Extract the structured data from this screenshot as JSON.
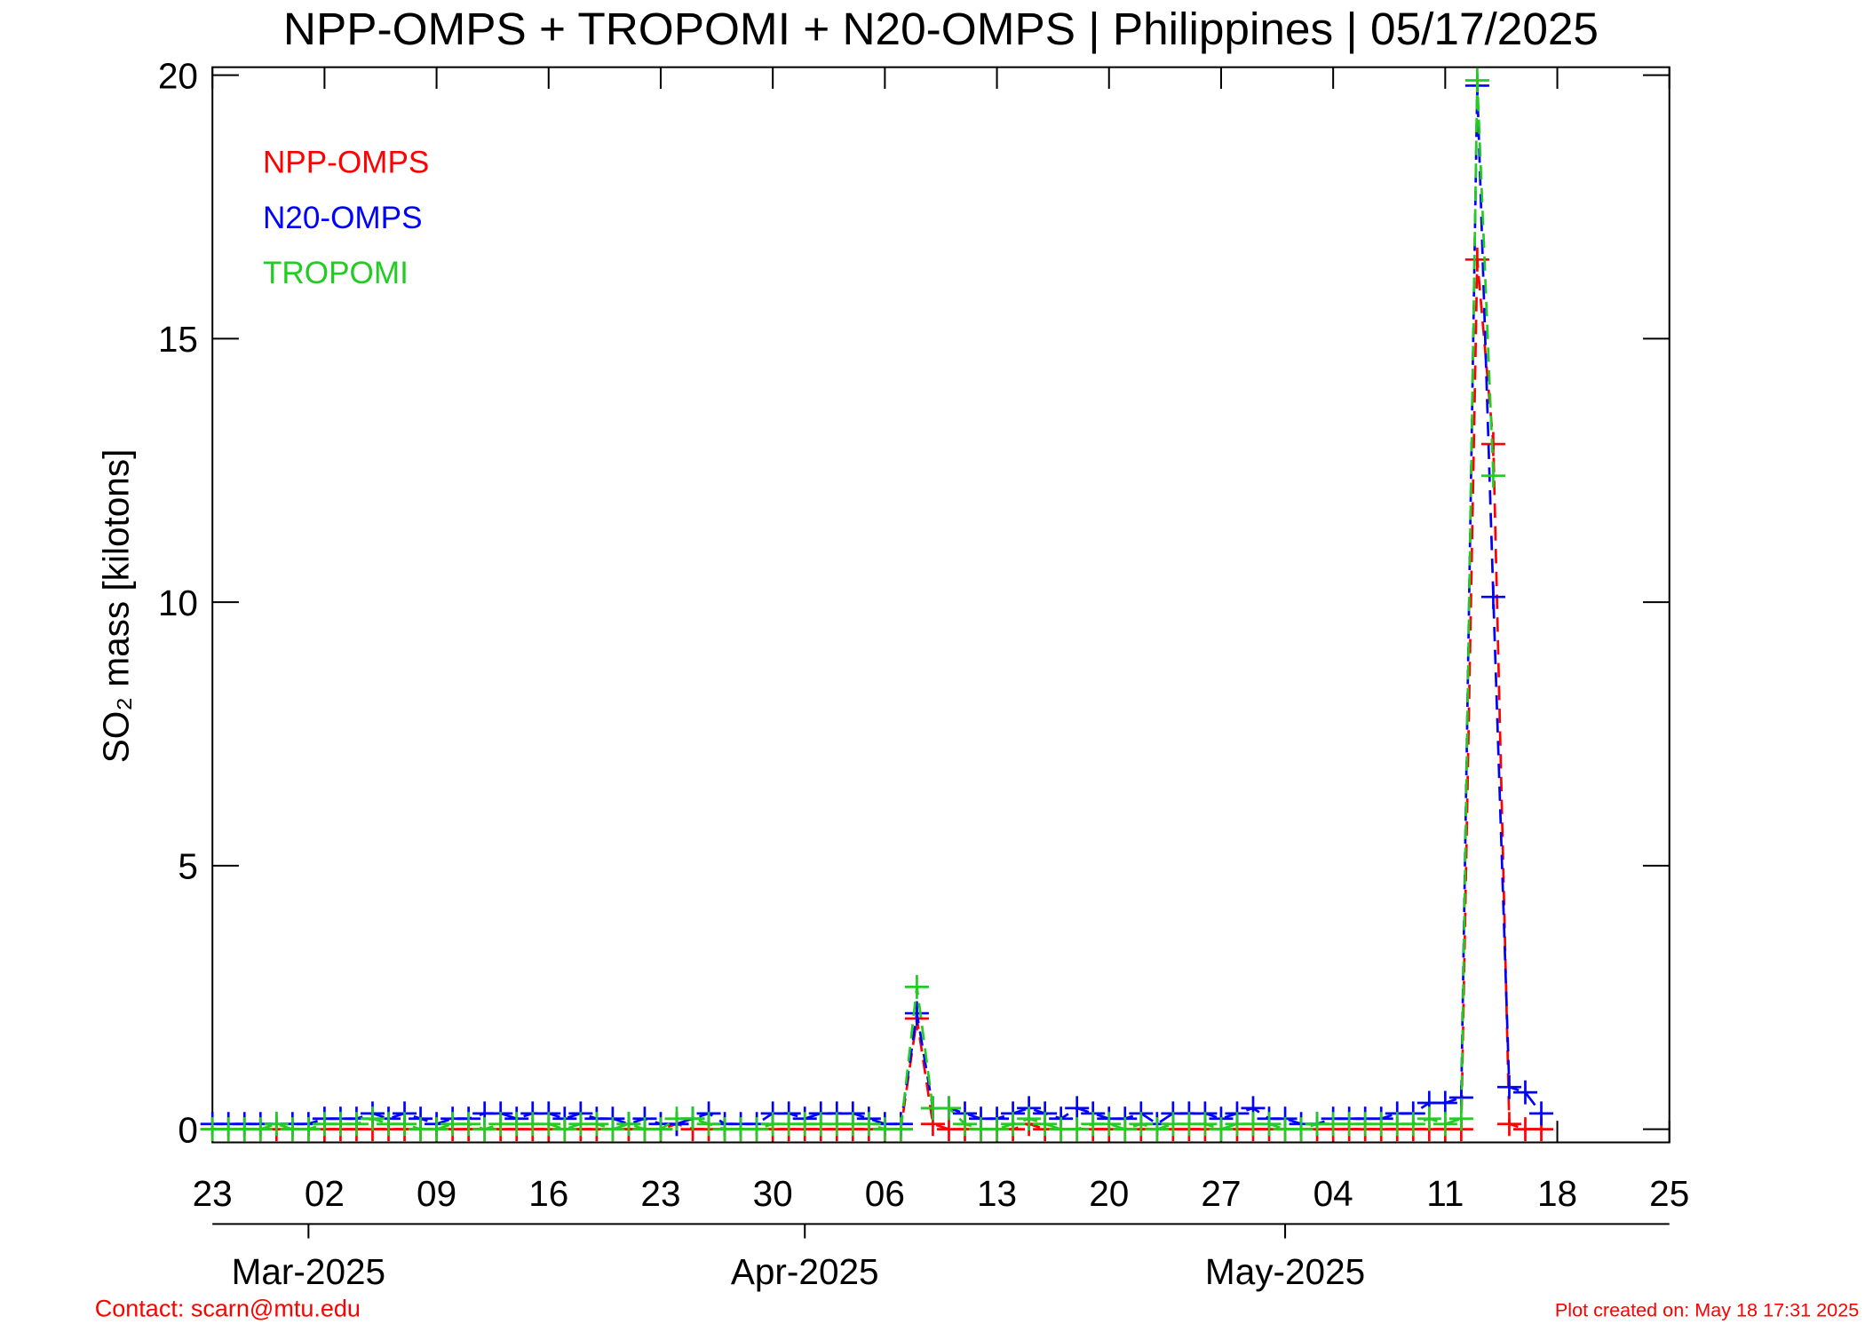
{
  "chart_data": {
    "type": "line",
    "title": "NPP-OMPS + TROPOMI + N20-OMPS | Philippines | 05/17/2025",
    "y_label": "SO₂ mass [kilotons]",
    "contact": "Contact: scarn@mtu.edu",
    "created": "Plot created on: May 18 17:31 2025",
    "x": [
      "2025-02-23",
      "2025-02-24",
      "2025-02-25",
      "2025-02-26",
      "2025-02-27",
      "2025-02-28",
      "2025-03-01",
      "2025-03-02",
      "2025-03-03",
      "2025-03-04",
      "2025-03-05",
      "2025-03-06",
      "2025-03-07",
      "2025-03-08",
      "2025-03-09",
      "2025-03-10",
      "2025-03-11",
      "2025-03-12",
      "2025-03-13",
      "2025-03-14",
      "2025-03-15",
      "2025-03-16",
      "2025-03-17",
      "2025-03-18",
      "2025-03-19",
      "2025-03-20",
      "2025-03-21",
      "2025-03-22",
      "2025-03-23",
      "2025-03-24",
      "2025-03-25",
      "2025-03-26",
      "2025-03-27",
      "2025-03-28",
      "2025-03-29",
      "2025-03-30",
      "2025-03-31",
      "2025-04-01",
      "2025-04-02",
      "2025-04-03",
      "2025-04-04",
      "2025-04-05",
      "2025-04-06",
      "2025-04-07",
      "2025-04-08",
      "2025-04-09",
      "2025-04-10",
      "2025-04-11",
      "2025-04-12",
      "2025-04-13",
      "2025-04-14",
      "2025-04-15",
      "2025-04-16",
      "2025-04-17",
      "2025-04-18",
      "2025-04-19",
      "2025-04-20",
      "2025-04-21",
      "2025-04-22",
      "2025-04-23",
      "2025-04-24",
      "2025-04-25",
      "2025-04-26",
      "2025-04-27",
      "2025-04-28",
      "2025-04-29",
      "2025-04-30",
      "2025-05-01",
      "2025-05-02",
      "2025-05-03",
      "2025-05-04",
      "2025-05-05",
      "2025-05-06",
      "2025-05-07",
      "2025-05-08",
      "2025-05-09",
      "2025-05-10",
      "2025-05-11",
      "2025-05-12",
      "2025-05-13",
      "2025-05-14",
      "2025-05-15",
      "2025-05-16",
      "2025-05-17"
    ],
    "series": [
      {
        "name": "NPP-OMPS",
        "color": "#ff0000",
        "values": [
          0,
          0,
          0,
          0,
          0,
          0,
          0,
          0,
          0,
          0,
          0,
          0,
          0,
          0,
          0,
          0,
          0,
          0,
          0,
          0,
          0,
          0,
          0,
          0,
          0,
          0,
          0,
          0,
          0,
          0.1,
          0,
          0,
          0,
          0,
          0,
          0,
          0,
          0,
          0,
          0,
          0,
          0,
          0,
          0,
          2.1,
          0.1,
          0,
          0,
          0,
          0,
          0,
          0.1,
          0,
          0,
          0,
          0,
          0,
          0,
          0,
          0,
          0,
          0,
          0,
          0,
          0,
          0,
          0,
          0,
          0,
          0,
          0,
          0,
          0,
          0,
          0,
          0,
          0,
          0,
          0,
          16.5,
          13.0,
          0.1,
          0,
          0
        ]
      },
      {
        "name": "N20-OMPS",
        "color": "#0000ff",
        "values": [
          0.1,
          0.1,
          0.1,
          0.1,
          0.1,
          0.1,
          0.1,
          0.2,
          0.2,
          0.2,
          0.3,
          0.2,
          0.3,
          0.2,
          0.1,
          0.2,
          0.2,
          0.3,
          0.3,
          0.2,
          0.3,
          0.3,
          0.2,
          0.3,
          0.2,
          0.2,
          0.1,
          0.2,
          0.1,
          0.1,
          0.2,
          0.3,
          0.1,
          0.1,
          0.1,
          0.3,
          0.3,
          0.2,
          0.3,
          0.3,
          0.3,
          0.2,
          0.1,
          0.1,
          2.2,
          0.4,
          0.4,
          0.3,
          0.2,
          0.2,
          0.3,
          0.4,
          0.3,
          0.2,
          0.4,
          0.3,
          0.2,
          0.2,
          0.3,
          0.1,
          0.3,
          0.3,
          0.3,
          0.2,
          0.3,
          0.4,
          0.2,
          0.2,
          0.1,
          0.1,
          0.2,
          0.2,
          0.2,
          0.2,
          0.3,
          0.3,
          0.5,
          0.5,
          0.6,
          19.8,
          10.1,
          0.8,
          0.7,
          0.3
        ]
      },
      {
        "name": "TROPOMI",
        "color": "#22cc22",
        "values": [
          0.0,
          0.0,
          0.0,
          0.0,
          0.1,
          0.0,
          0.0,
          0.1,
          0.1,
          0.1,
          0.2,
          0.1,
          0.1,
          0.0,
          0.0,
          0.1,
          0.1,
          0.0,
          0.1,
          0.1,
          0.1,
          0.1,
          0.0,
          0.1,
          0.1,
          0.0,
          0.1,
          0.0,
          0.0,
          0.2,
          0.2,
          0.1,
          0.0,
          0.0,
          0.0,
          0.1,
          0.1,
          0.1,
          0.1,
          0.1,
          0.1,
          0.1,
          0.0,
          0.0,
          2.7,
          0.4,
          0.4,
          0.1,
          0.0,
          0.0,
          0.1,
          0.2,
          0.1,
          0.0,
          0.0,
          0.1,
          0.1,
          0.0,
          0.1,
          0.0,
          0.1,
          0.1,
          0.1,
          0.0,
          0.1,
          0.1,
          0.1,
          0.0,
          0.0,
          0.1,
          0.1,
          0.1,
          0.1,
          0.1,
          0.1,
          0.1,
          0.2,
          0.1,
          0.2,
          19.9,
          12.4,
          null,
          null,
          null
        ]
      }
    ],
    "xlim": [
      "2025-02-23",
      "2025-05-25"
    ],
    "xticks": [
      {
        "value": "2025-02-23",
        "label": "23"
      },
      {
        "value": "2025-03-02",
        "label": "02"
      },
      {
        "value": "2025-03-09",
        "label": "09"
      },
      {
        "value": "2025-03-16",
        "label": "16"
      },
      {
        "value": "2025-03-23",
        "label": "23"
      },
      {
        "value": "2025-03-30",
        "label": "30"
      },
      {
        "value": "2025-04-06",
        "label": "06"
      },
      {
        "value": "2025-04-13",
        "label": "13"
      },
      {
        "value": "2025-04-20",
        "label": "20"
      },
      {
        "value": "2025-04-27",
        "label": "27"
      },
      {
        "value": "2025-05-04",
        "label": "04"
      },
      {
        "value": "2025-05-11",
        "label": "11"
      },
      {
        "value": "2025-05-18",
        "label": "18"
      },
      {
        "value": "2025-05-25",
        "label": "25"
      }
    ],
    "month_ticks": [
      {
        "value": "2025-03-01",
        "label": "Mar-2025"
      },
      {
        "value": "2025-04-01",
        "label": "Apr-2025"
      },
      {
        "value": "2025-05-01",
        "label": "May-2025"
      }
    ],
    "ylim": [
      -0.25,
      20.15
    ],
    "yticks": [
      0,
      5,
      10,
      15,
      20
    ]
  }
}
